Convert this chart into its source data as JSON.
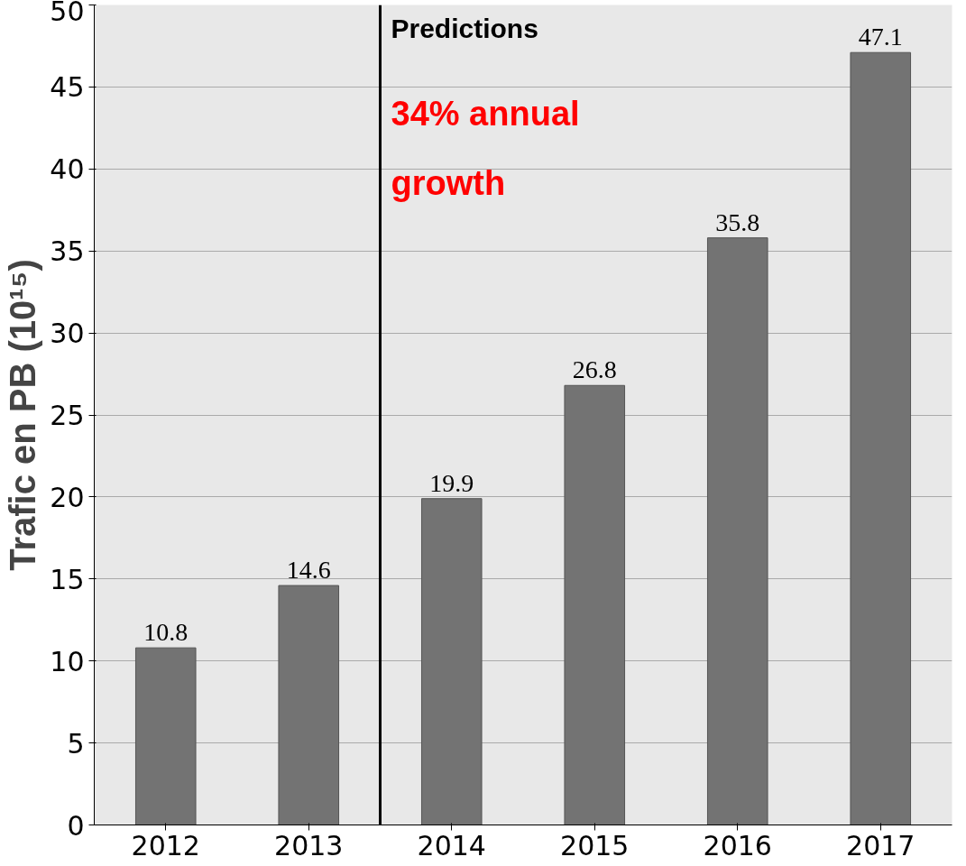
{
  "chart_data": {
    "type": "bar",
    "ylabel": "Trafic en PB (10¹⁵)",
    "x": [
      2012,
      2013,
      2014,
      2015,
      2016,
      2017
    ],
    "values": [
      10.8,
      14.6,
      19.9,
      26.8,
      35.8,
      47.1
    ],
    "color": "#737373",
    "xlim": [
      2011.5,
      2017.5
    ],
    "xticks": [
      2012,
      2013,
      2014,
      2015,
      2016,
      2017
    ],
    "ylim": [
      0,
      50
    ],
    "yticks": [
      0,
      5,
      10,
      15,
      20,
      25,
      30,
      35,
      40,
      45,
      50
    ],
    "grid": "y",
    "data_labels": true,
    "ref_lines": [
      {
        "axis": "x",
        "value": 2013.5,
        "color": "#000000"
      }
    ],
    "annotations": [
      "Predictions",
      "34% annual growth"
    ]
  }
}
